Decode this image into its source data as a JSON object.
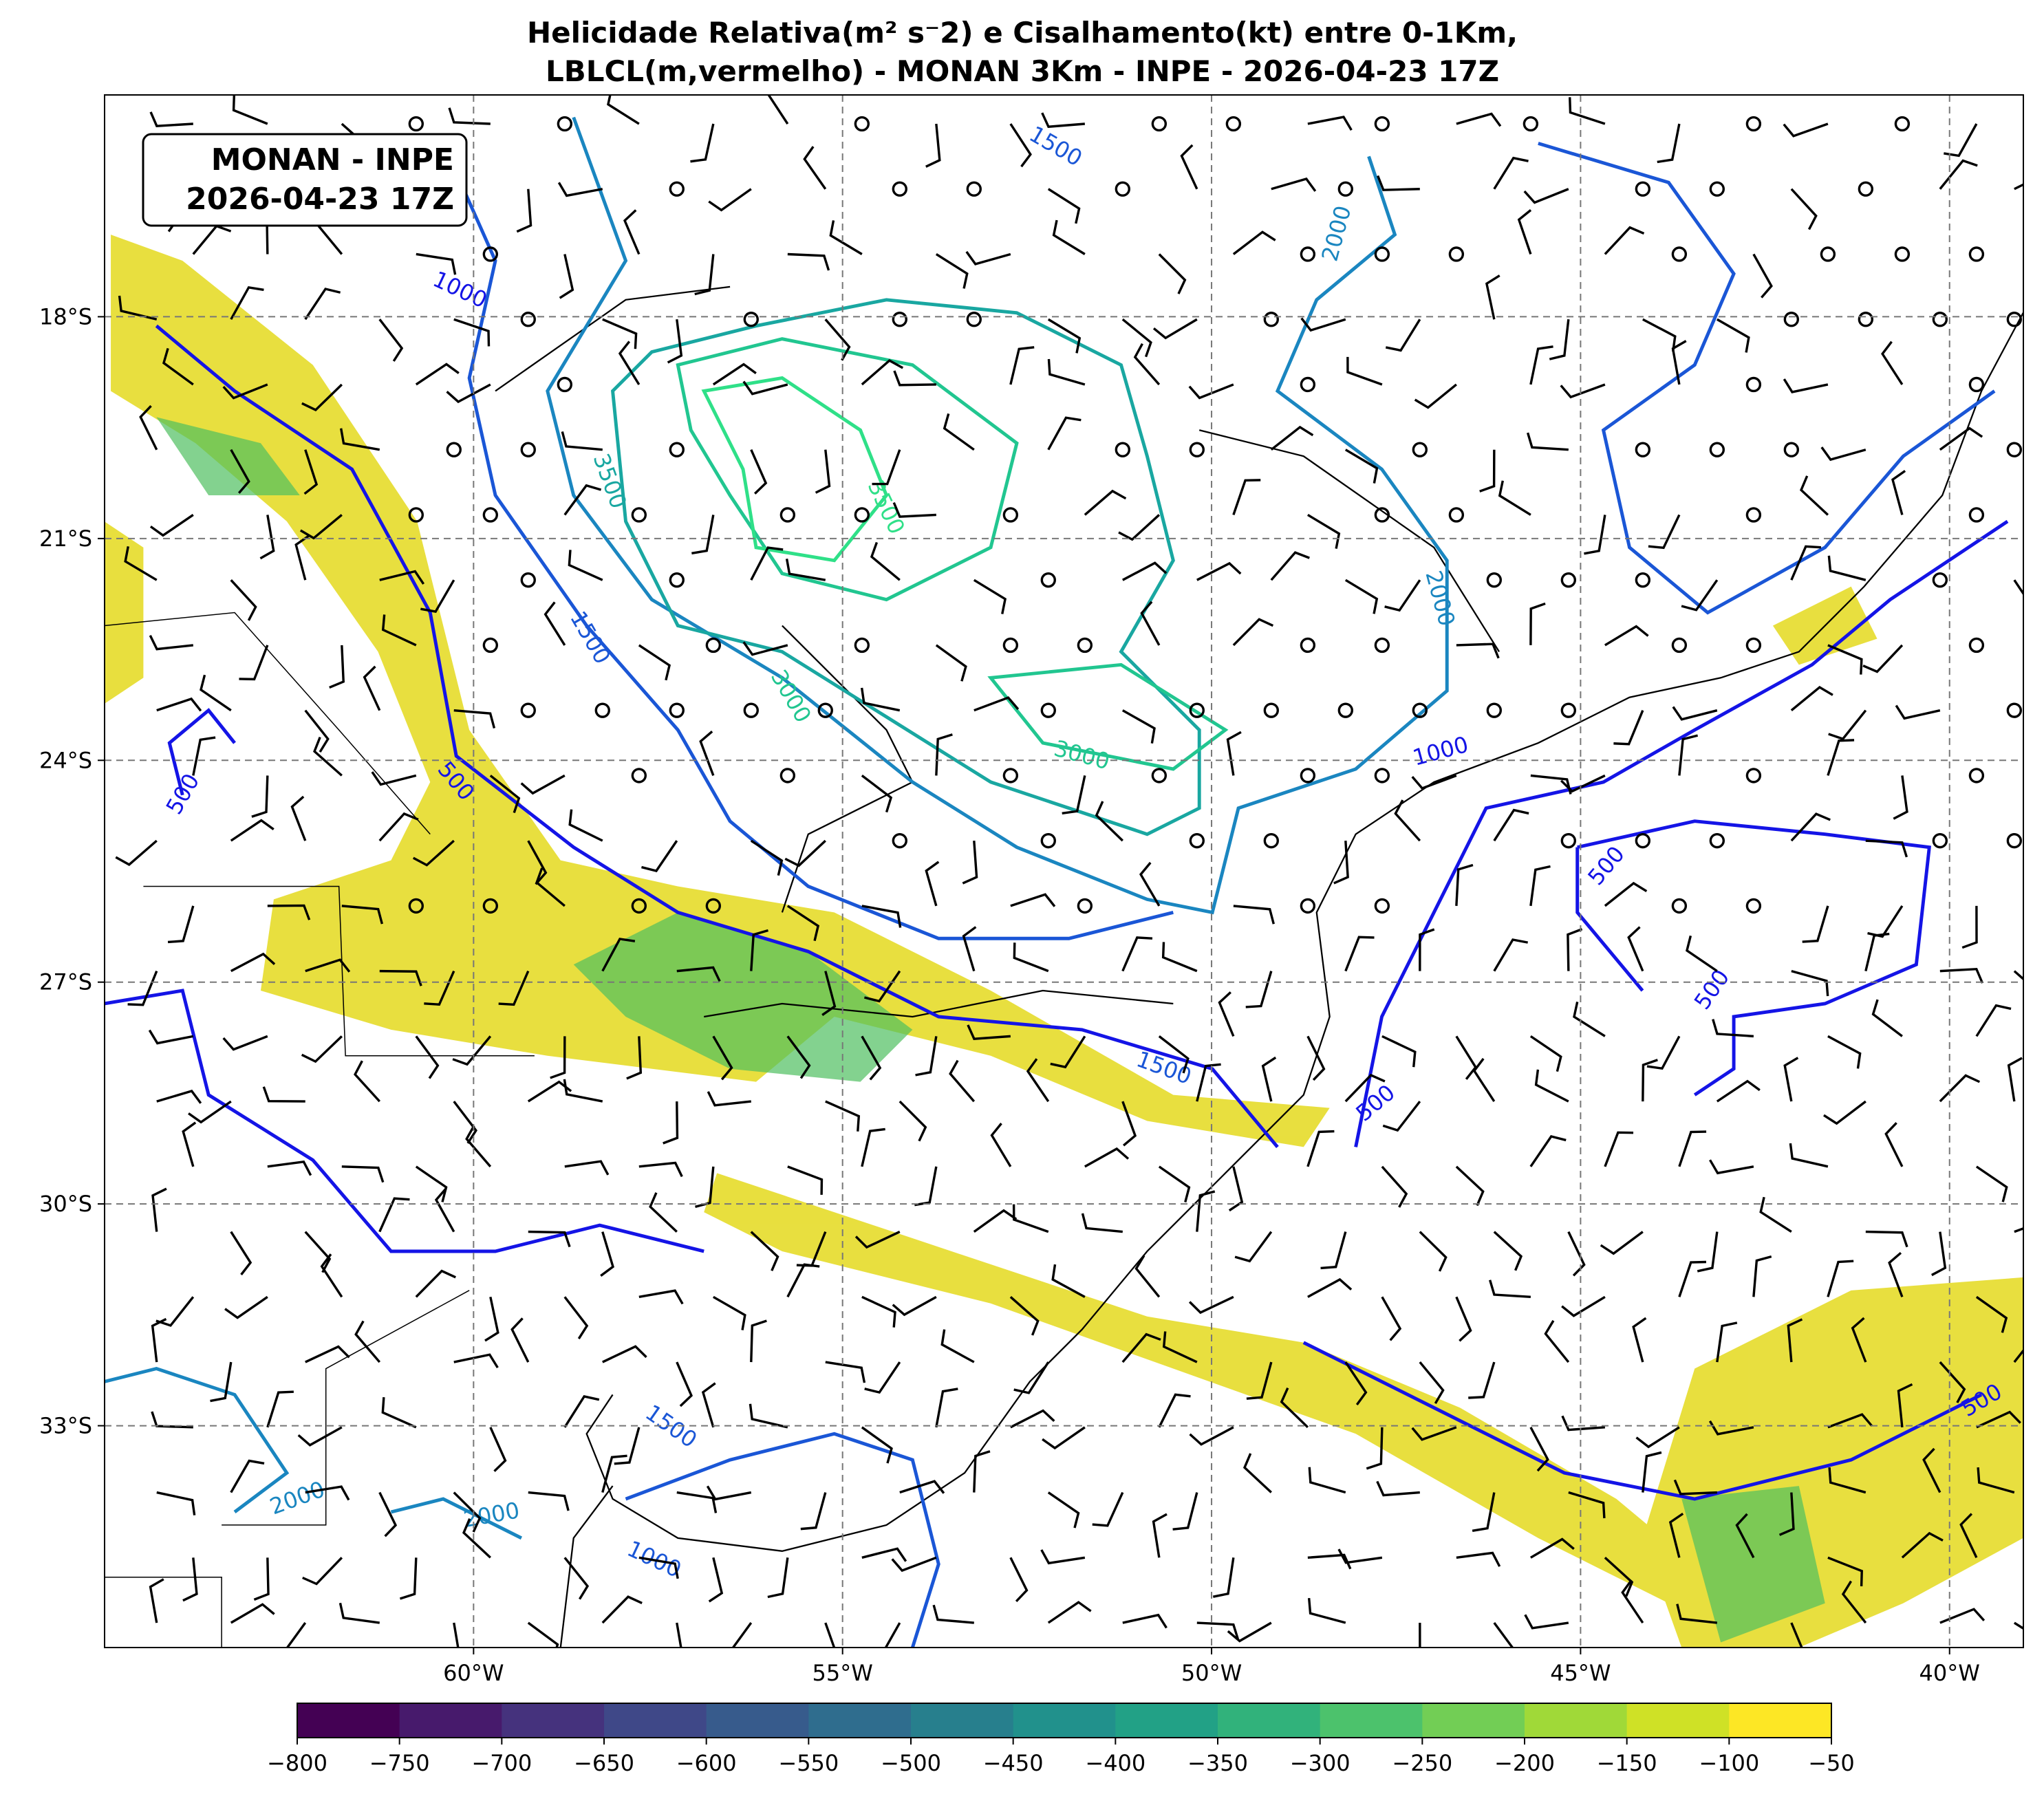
{
  "header": {
    "title_lines": [
      "Helicidade Relativa(m² s⁻2) e Cisalhamento(kt) entre 0-1Km,",
      "LBLCL(m,vermelho) - MONAN 3Km - INPE - 2026-04-23 17Z"
    ]
  },
  "info_box": {
    "lines": [
      "MONAN - INPE",
      "2026-04-23 17Z"
    ]
  },
  "map": {
    "lonlim": [
      -65,
      -39
    ],
    "latlim": [
      -36,
      -15
    ],
    "lon_ticks": [
      {
        "value": -60,
        "label": "60°W"
      },
      {
        "value": -55,
        "label": "55°W"
      },
      {
        "value": -50,
        "label": "50°W"
      },
      {
        "value": -45,
        "label": "45°W"
      },
      {
        "value": -40,
        "label": "40°W"
      }
    ],
    "lat_ticks": [
      {
        "value": -18,
        "label": "18°S"
      },
      {
        "value": -21,
        "label": "21°S"
      },
      {
        "value": -24,
        "label": "24°S"
      },
      {
        "value": -27,
        "label": "27°S"
      },
      {
        "value": -30,
        "label": "30°S"
      },
      {
        "value": -33,
        "label": "33°S"
      }
    ],
    "grid": true,
    "contour_labels": [
      1500,
      1000,
      2000,
      3500,
      3500,
      1500,
      3000,
      3000,
      500,
      500,
      2000,
      1000,
      500,
      500,
      1500,
      500,
      500,
      1500,
      2000,
      2000,
      1000
    ]
  },
  "colorbar": {
    "colormap": "viridis",
    "lim": [
      -800,
      -50
    ],
    "ticks": [
      {
        "value": -800,
        "label": "−800"
      },
      {
        "value": -750,
        "label": "−750"
      },
      {
        "value": -700,
        "label": "−700"
      },
      {
        "value": -650,
        "label": "−650"
      },
      {
        "value": -600,
        "label": "−600"
      },
      {
        "value": -550,
        "label": "−550"
      },
      {
        "value": -500,
        "label": "−500"
      },
      {
        "value": -450,
        "label": "−450"
      },
      {
        "value": -400,
        "label": "−400"
      },
      {
        "value": -350,
        "label": "−350"
      },
      {
        "value": -300,
        "label": "−300"
      },
      {
        "value": -250,
        "label": "−250"
      },
      {
        "value": -200,
        "label": "−200"
      },
      {
        "value": -150,
        "label": "−150"
      },
      {
        "value": -100,
        "label": "−100"
      },
      {
        "value": -50,
        "label": "−50"
      }
    ]
  }
}
